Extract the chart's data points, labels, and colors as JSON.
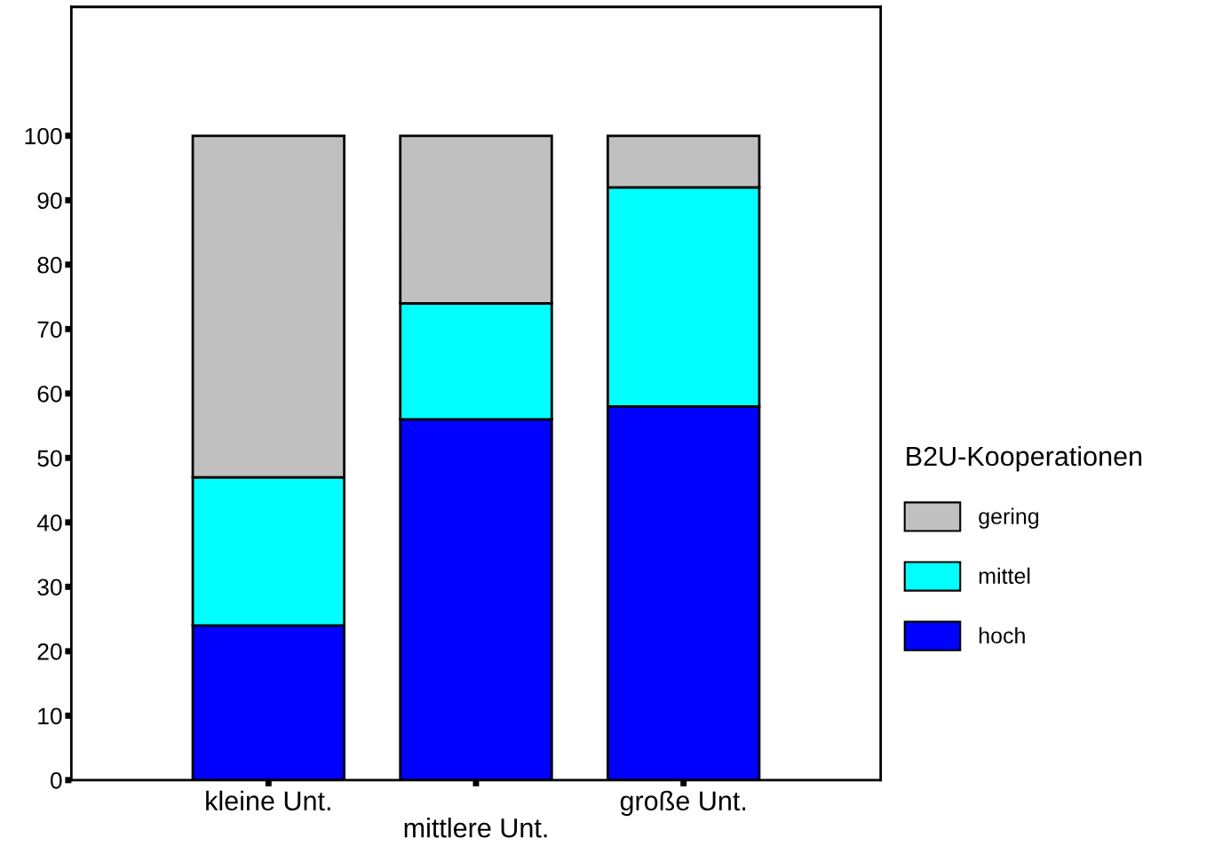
{
  "chart_data": {
    "type": "bar",
    "stacked": true,
    "categories": [
      "kleine Unt.",
      "mittlere Unt.",
      "große Unt."
    ],
    "series": [
      {
        "name": "hoch",
        "color": "#0000ff",
        "values": [
          24,
          56,
          58
        ]
      },
      {
        "name": "mittel",
        "color": "#00ffff",
        "values": [
          23,
          18,
          34
        ]
      },
      {
        "name": "gering",
        "color": "#c0c0c0",
        "values": [
          53,
          26,
          8
        ]
      }
    ],
    "legend_title": "B2U-Kooperationen",
    "legend": "right",
    "grid": false,
    "ylim": [
      0,
      120
    ],
    "yticks": [
      0,
      10,
      20,
      30,
      40,
      50,
      60,
      70,
      80,
      90,
      100
    ]
  }
}
